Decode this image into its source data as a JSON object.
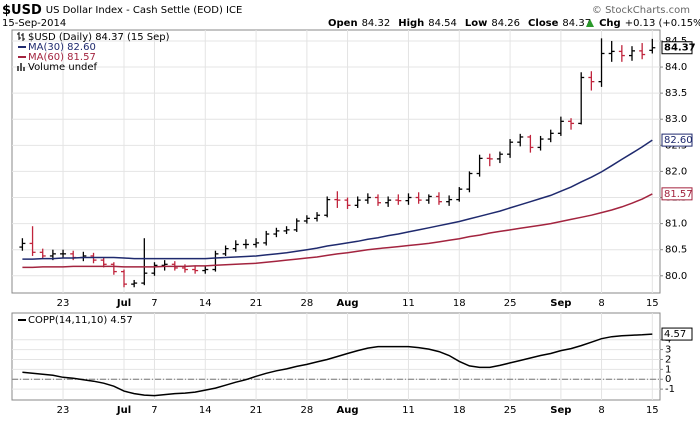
{
  "header": {
    "symbol": "$USD",
    "name": "US Dollar Index - Cash Settle (EOD) ICE",
    "date": "15-Sep-2014",
    "credit": "© StockCharts.com",
    "quote": [
      {
        "label": "Open",
        "value": "84.32"
      },
      {
        "label": "High",
        "value": "84.54"
      },
      {
        "label": "Low",
        "value": "84.26"
      },
      {
        "label": "Close",
        "value": "84.37"
      },
      {
        "label": "Chg",
        "value": "+0.13 (+0.15%)"
      }
    ]
  },
  "chart_data": [
    {
      "type": "ohlc",
      "categories": [
        null,
        null,
        null,
        null,
        "23",
        null,
        null,
        null,
        null,
        null,
        "Jul",
        null,
        null,
        "7",
        null,
        null,
        null,
        null,
        "14",
        null,
        null,
        null,
        null,
        "21",
        null,
        null,
        null,
        null,
        "28",
        null,
        null,
        null,
        "Aug",
        null,
        null,
        null,
        null,
        null,
        "11",
        null,
        null,
        null,
        null,
        "18",
        null,
        null,
        null,
        null,
        "25",
        null,
        null,
        null,
        null,
        "Sep",
        null,
        null,
        null,
        "8",
        null,
        null,
        null,
        null,
        "15"
      ],
      "ohlc": {
        "name": "$USD (Daily) 84.37 (15 Sep)",
        "up_color": "#000000",
        "down_color": "#c0243c",
        "last_label": "84.37",
        "open": [
          80.55,
          80.62,
          80.45,
          80.38,
          80.42,
          80.42,
          80.35,
          80.38,
          80.3,
          80.22,
          80.08,
          79.84,
          79.86,
          80.05,
          80.2,
          80.22,
          80.15,
          80.12,
          80.1,
          80.12,
          80.42,
          80.52,
          80.6,
          80.6,
          80.63,
          80.8,
          80.86,
          80.88,
          81.05,
          81.1,
          81.16,
          81.46,
          81.45,
          81.35,
          81.45,
          81.5,
          81.4,
          81.45,
          81.44,
          81.5,
          81.45,
          81.52,
          81.42,
          81.46,
          81.66,
          81.96,
          82.25,
          82.24,
          82.33,
          82.56,
          82.66,
          82.46,
          82.62,
          82.73,
          82.96,
          82.92,
          83.8,
          83.72,
          84.26,
          84.3,
          84.22,
          84.31,
          84.32
        ],
        "high": [
          80.72,
          80.95,
          80.52,
          80.5,
          80.5,
          80.48,
          80.46,
          80.44,
          80.36,
          80.26,
          80.12,
          79.92,
          80.72,
          80.26,
          80.3,
          80.28,
          80.22,
          80.18,
          80.18,
          80.48,
          80.58,
          80.68,
          80.7,
          80.72,
          80.86,
          80.92,
          80.95,
          81.1,
          81.16,
          81.22,
          81.52,
          81.62,
          81.5,
          81.52,
          81.58,
          81.56,
          81.52,
          81.56,
          81.58,
          81.6,
          81.56,
          81.6,
          81.54,
          81.7,
          82.0,
          82.32,
          82.34,
          82.38,
          82.62,
          82.72,
          82.7,
          82.68,
          82.8,
          83.05,
          83.02,
          83.9,
          83.92,
          84.55,
          84.5,
          84.42,
          84.4,
          84.46,
          84.54
        ],
        "low": [
          80.48,
          80.38,
          80.32,
          80.3,
          80.34,
          80.3,
          80.28,
          80.24,
          80.16,
          80.02,
          79.78,
          79.78,
          79.82,
          80.0,
          80.1,
          80.1,
          80.06,
          80.04,
          80.04,
          80.08,
          80.38,
          80.46,
          80.52,
          80.54,
          80.58,
          80.74,
          80.8,
          80.84,
          81.0,
          81.04,
          81.12,
          81.3,
          81.28,
          81.3,
          81.38,
          81.34,
          81.32,
          81.36,
          81.36,
          81.38,
          81.38,
          81.36,
          81.34,
          81.42,
          81.6,
          81.9,
          82.1,
          82.16,
          82.26,
          82.48,
          82.36,
          82.4,
          82.56,
          82.68,
          82.8,
          82.9,
          83.55,
          83.62,
          84.1,
          84.1,
          84.12,
          84.15,
          84.26
        ],
        "close": [
          80.62,
          80.45,
          80.38,
          80.42,
          80.42,
          80.35,
          80.38,
          80.3,
          80.22,
          80.08,
          79.84,
          79.86,
          80.05,
          80.2,
          80.22,
          80.15,
          80.12,
          80.1,
          80.12,
          80.42,
          80.52,
          80.6,
          80.6,
          80.63,
          80.8,
          80.86,
          80.88,
          81.05,
          81.1,
          81.16,
          81.46,
          81.45,
          81.35,
          81.45,
          81.5,
          81.4,
          81.45,
          81.44,
          81.5,
          81.45,
          81.52,
          81.42,
          81.46,
          81.66,
          81.96,
          82.25,
          82.24,
          82.33,
          82.56,
          82.66,
          82.46,
          82.62,
          82.73,
          82.96,
          82.92,
          83.8,
          83.72,
          84.26,
          84.3,
          84.22,
          84.31,
          84.24,
          84.37
        ]
      },
      "series": [
        {
          "name": "MA(30) 82.60",
          "color": "#1f2a6e",
          "last_label": "82.60",
          "values": [
            80.32,
            80.32,
            80.33,
            80.33,
            80.34,
            80.34,
            80.35,
            80.35,
            80.35,
            80.35,
            80.34,
            80.33,
            80.33,
            80.33,
            80.33,
            80.33,
            80.33,
            80.33,
            80.33,
            80.34,
            80.35,
            80.36,
            80.37,
            80.38,
            80.4,
            80.42,
            80.44,
            80.47,
            80.5,
            80.53,
            80.57,
            80.6,
            80.63,
            80.66,
            80.7,
            80.73,
            80.77,
            80.8,
            80.84,
            80.88,
            80.92,
            80.96,
            81.0,
            81.04,
            81.09,
            81.14,
            81.19,
            81.24,
            81.3,
            81.36,
            81.42,
            81.48,
            81.54,
            81.62,
            81.7,
            81.8,
            81.89,
            81.99,
            82.11,
            82.23,
            82.35,
            82.47,
            82.6
          ]
        },
        {
          "name": "MA(60) 81.57",
          "color": "#a3243f",
          "last_label": "81.57",
          "values": [
            80.16,
            80.16,
            80.17,
            80.17,
            80.17,
            80.18,
            80.18,
            80.18,
            80.18,
            80.18,
            80.17,
            80.17,
            80.17,
            80.17,
            80.18,
            80.18,
            80.18,
            80.19,
            80.19,
            80.2,
            80.21,
            80.22,
            80.23,
            80.24,
            80.26,
            80.28,
            80.3,
            80.32,
            80.34,
            80.36,
            80.39,
            80.42,
            80.44,
            80.47,
            80.5,
            80.52,
            80.54,
            80.56,
            80.58,
            80.6,
            80.62,
            80.65,
            80.68,
            80.71,
            80.75,
            80.78,
            80.82,
            80.85,
            80.88,
            80.91,
            80.94,
            80.97,
            81.0,
            81.04,
            81.08,
            81.12,
            81.16,
            81.21,
            81.26,
            81.32,
            81.39,
            81.47,
            81.57
          ]
        }
      ],
      "legend_extra": "Volume undef",
      "ylim": [
        79.67,
        84.71
      ],
      "yticks": [
        {
          "value": 80,
          "label": "80.0"
        },
        80.5,
        {
          "value": 81,
          "label": "81.0"
        },
        81.5,
        {
          "value": 82,
          "label": "82.0"
        },
        82.5,
        {
          "value": 83,
          "label": "83.0"
        },
        83.5,
        {
          "value": 84,
          "label": "84.0"
        },
        84.5
      ],
      "grid": true
    },
    {
      "type": "line",
      "categories": [
        null,
        null,
        null,
        null,
        "23",
        null,
        null,
        null,
        null,
        null,
        "Jul",
        null,
        null,
        "7",
        null,
        null,
        null,
        null,
        "14",
        null,
        null,
        null,
        null,
        "21",
        null,
        null,
        null,
        null,
        "28",
        null,
        null,
        null,
        "Aug",
        null,
        null,
        null,
        null,
        null,
        "11",
        null,
        null,
        null,
        null,
        "18",
        null,
        null,
        null,
        null,
        "25",
        null,
        null,
        null,
        null,
        "Sep",
        null,
        null,
        null,
        "8",
        null,
        null,
        null,
        null,
        "15"
      ],
      "series": [
        {
          "name": "COPP(14,11,10) 4.57",
          "color": "#000000",
          "last_label": "4.57",
          "values": [
            0.7,
            0.6,
            0.5,
            0.4,
            0.2,
            0.1,
            -0.05,
            -0.2,
            -0.4,
            -0.7,
            -1.2,
            -1.45,
            -1.6,
            -1.65,
            -1.55,
            -1.45,
            -1.4,
            -1.3,
            -1.1,
            -0.9,
            -0.6,
            -0.3,
            -0.05,
            0.3,
            0.6,
            0.85,
            1.05,
            1.3,
            1.5,
            1.75,
            2.0,
            2.3,
            2.6,
            2.9,
            3.15,
            3.3,
            3.3,
            3.3,
            3.3,
            3.2,
            3.05,
            2.8,
            2.4,
            1.8,
            1.35,
            1.2,
            1.2,
            1.4,
            1.65,
            1.9,
            2.15,
            2.4,
            2.6,
            2.9,
            3.1,
            3.4,
            3.75,
            4.1,
            4.3,
            4.4,
            4.45,
            4.5,
            4.57
          ]
        }
      ],
      "hline": 0,
      "ylim": [
        -2.1,
        6.7
      ],
      "yticks": [
        -1,
        0,
        1,
        2,
        3,
        4
      ],
      "grid": true
    }
  ]
}
